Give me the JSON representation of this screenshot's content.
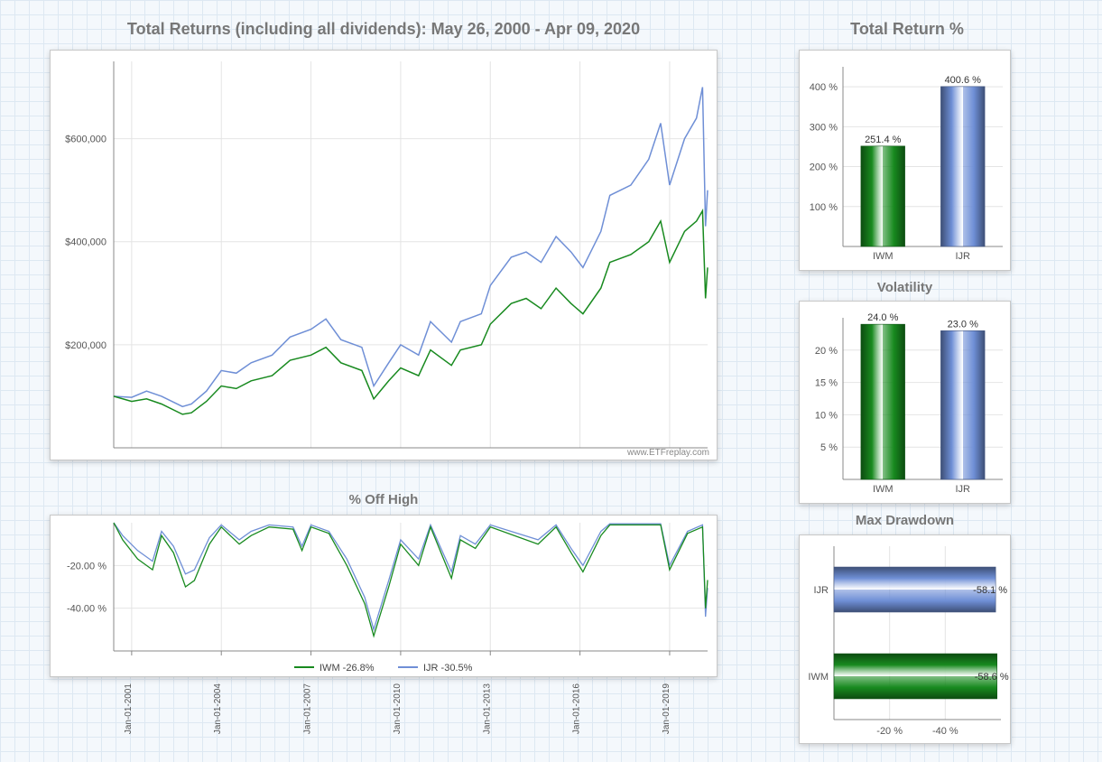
{
  "page_bg": "#f4f8fc",
  "grid_bg": "#dde8f2",
  "main_title": "Total Returns (including all dividends): May 26, 2000 - Apr 09, 2020",
  "main_title_fontsize": 18,
  "main_title_color": "#777777",
  "watermark": "www.ETFreplay.com",
  "series_colors": {
    "IWM": "#188a1f",
    "IJR": "#6f8fd6"
  },
  "returns_chart": {
    "type": "line",
    "panel_bg": "#ffffff",
    "grid_color": "#e4e4e4",
    "x_range_years": [
      2000.4,
      2020.27
    ],
    "y_range": [
      0,
      750000
    ],
    "y_ticks": [
      200000,
      400000,
      600000
    ],
    "y_tick_labels": [
      "$200,000",
      "$400,000",
      "$600,000"
    ],
    "x_tick_years": [
      2001,
      2004,
      2007,
      2010,
      2013,
      2016,
      2019
    ],
    "x_tick_labels": [
      "Jan-01-2001",
      "Jan-01-2004",
      "Jan-01-2007",
      "Jan-01-2010",
      "Jan-01-2013",
      "Jan-01-2016",
      "Jan-01-2019"
    ],
    "iwm_points": [
      [
        2000.4,
        100000
      ],
      [
        2001,
        90000
      ],
      [
        2001.5,
        95000
      ],
      [
        2002,
        85000
      ],
      [
        2002.7,
        65000
      ],
      [
        2003,
        68000
      ],
      [
        2003.5,
        90000
      ],
      [
        2004,
        120000
      ],
      [
        2004.5,
        115000
      ],
      [
        2005,
        130000
      ],
      [
        2005.7,
        140000
      ],
      [
        2006.3,
        170000
      ],
      [
        2007,
        180000
      ],
      [
        2007.5,
        195000
      ],
      [
        2008,
        165000
      ],
      [
        2008.7,
        150000
      ],
      [
        2009.1,
        95000
      ],
      [
        2009.6,
        130000
      ],
      [
        2010,
        155000
      ],
      [
        2010.6,
        140000
      ],
      [
        2011,
        190000
      ],
      [
        2011.7,
        160000
      ],
      [
        2012,
        190000
      ],
      [
        2012.7,
        200000
      ],
      [
        2013,
        240000
      ],
      [
        2013.7,
        280000
      ],
      [
        2014.2,
        290000
      ],
      [
        2014.7,
        270000
      ],
      [
        2015.2,
        310000
      ],
      [
        2015.7,
        280000
      ],
      [
        2016.1,
        260000
      ],
      [
        2016.7,
        310000
      ],
      [
        2017,
        360000
      ],
      [
        2017.7,
        375000
      ],
      [
        2018.3,
        400000
      ],
      [
        2018.7,
        440000
      ],
      [
        2019,
        360000
      ],
      [
        2019.5,
        420000
      ],
      [
        2019.9,
        440000
      ],
      [
        2020.1,
        460000
      ],
      [
        2020.2,
        290000
      ],
      [
        2020.27,
        350000
      ]
    ],
    "ijr_points": [
      [
        2000.4,
        100000
      ],
      [
        2001,
        98000
      ],
      [
        2001.5,
        110000
      ],
      [
        2002,
        100000
      ],
      [
        2002.7,
        80000
      ],
      [
        2003,
        85000
      ],
      [
        2003.5,
        110000
      ],
      [
        2004,
        150000
      ],
      [
        2004.5,
        145000
      ],
      [
        2005,
        165000
      ],
      [
        2005.7,
        180000
      ],
      [
        2006.3,
        215000
      ],
      [
        2007,
        230000
      ],
      [
        2007.5,
        250000
      ],
      [
        2008,
        210000
      ],
      [
        2008.7,
        195000
      ],
      [
        2009.1,
        120000
      ],
      [
        2009.6,
        165000
      ],
      [
        2010,
        200000
      ],
      [
        2010.6,
        180000
      ],
      [
        2011,
        245000
      ],
      [
        2011.7,
        205000
      ],
      [
        2012,
        245000
      ],
      [
        2012.7,
        260000
      ],
      [
        2013,
        315000
      ],
      [
        2013.7,
        370000
      ],
      [
        2014.2,
        380000
      ],
      [
        2014.7,
        360000
      ],
      [
        2015.2,
        410000
      ],
      [
        2015.7,
        380000
      ],
      [
        2016.1,
        350000
      ],
      [
        2016.7,
        420000
      ],
      [
        2017,
        490000
      ],
      [
        2017.7,
        510000
      ],
      [
        2018.3,
        560000
      ],
      [
        2018.7,
        630000
      ],
      [
        2019,
        510000
      ],
      [
        2019.5,
        600000
      ],
      [
        2019.9,
        640000
      ],
      [
        2020.1,
        700000
      ],
      [
        2020.2,
        430000
      ],
      [
        2020.27,
        500000
      ]
    ]
  },
  "off_high_chart": {
    "type": "line",
    "title": "% Off High",
    "y_range": [
      -60,
      0
    ],
    "y_ticks": [
      -20,
      -40
    ],
    "y_tick_labels": [
      "-20.00 %",
      "-40.00 %"
    ],
    "legend": {
      "iwm": "IWM -26.8%",
      "ijr": "IJR -30.5%"
    },
    "iwm_points": [
      [
        2000.4,
        0
      ],
      [
        2000.7,
        -8
      ],
      [
        2001.2,
        -17
      ],
      [
        2001.7,
        -22
      ],
      [
        2002,
        -6
      ],
      [
        2002.4,
        -14
      ],
      [
        2002.8,
        -30
      ],
      [
        2003.1,
        -27
      ],
      [
        2003.6,
        -10
      ],
      [
        2004,
        -2
      ],
      [
        2004.6,
        -10
      ],
      [
        2005,
        -6
      ],
      [
        2005.6,
        -2
      ],
      [
        2006.4,
        -3
      ],
      [
        2006.7,
        -13
      ],
      [
        2007,
        -2
      ],
      [
        2007.6,
        -5
      ],
      [
        2008.2,
        -20
      ],
      [
        2008.8,
        -38
      ],
      [
        2009.1,
        -53
      ],
      [
        2009.6,
        -30
      ],
      [
        2010,
        -10
      ],
      [
        2010.6,
        -20
      ],
      [
        2011,
        -2
      ],
      [
        2011.7,
        -26
      ],
      [
        2012,
        -8
      ],
      [
        2012.5,
        -12
      ],
      [
        2013,
        -2
      ],
      [
        2014.6,
        -10
      ],
      [
        2015.2,
        -2
      ],
      [
        2015.7,
        -14
      ],
      [
        2016.1,
        -23
      ],
      [
        2016.7,
        -6
      ],
      [
        2017,
        -1
      ],
      [
        2018.7,
        -1
      ],
      [
        2019,
        -22
      ],
      [
        2019.6,
        -5
      ],
      [
        2020.1,
        -2
      ],
      [
        2020.2,
        -40
      ],
      [
        2020.27,
        -26.8
      ]
    ],
    "ijr_points": [
      [
        2000.4,
        0
      ],
      [
        2000.7,
        -6
      ],
      [
        2001.2,
        -13
      ],
      [
        2001.7,
        -18
      ],
      [
        2002,
        -4
      ],
      [
        2002.4,
        -11
      ],
      [
        2002.8,
        -24
      ],
      [
        2003.1,
        -22
      ],
      [
        2003.6,
        -7
      ],
      [
        2004,
        -1
      ],
      [
        2004.6,
        -8
      ],
      [
        2005,
        -4
      ],
      [
        2005.6,
        -1
      ],
      [
        2006.4,
        -2
      ],
      [
        2006.7,
        -11
      ],
      [
        2007,
        -1
      ],
      [
        2007.6,
        -4
      ],
      [
        2008.2,
        -17
      ],
      [
        2008.8,
        -35
      ],
      [
        2009.1,
        -50
      ],
      [
        2009.6,
        -27
      ],
      [
        2010,
        -8
      ],
      [
        2010.6,
        -17
      ],
      [
        2011,
        -1
      ],
      [
        2011.7,
        -23
      ],
      [
        2012,
        -6
      ],
      [
        2012.5,
        -10
      ],
      [
        2013,
        -1
      ],
      [
        2014.6,
        -8
      ],
      [
        2015.2,
        -1
      ],
      [
        2015.7,
        -12
      ],
      [
        2016.1,
        -20
      ],
      [
        2016.7,
        -4
      ],
      [
        2017,
        -0.5
      ],
      [
        2018.7,
        -0.5
      ],
      [
        2019,
        -20
      ],
      [
        2019.6,
        -4
      ],
      [
        2020.1,
        -1
      ],
      [
        2020.2,
        -44
      ],
      [
        2020.27,
        -30.5
      ]
    ]
  },
  "total_return_bars": {
    "type": "bar",
    "title": "Total Return %",
    "y_range": [
      0,
      450
    ],
    "y_ticks": [
      100,
      200,
      300,
      400
    ],
    "y_tick_labels": [
      "100 %",
      "200 %",
      "300 %",
      "400 %"
    ],
    "bars": [
      {
        "label": "IWM",
        "value": 251.4,
        "display": "251.4 %",
        "color": "#188a1f"
      },
      {
        "label": "IJR",
        "value": 400.6,
        "display": "400.6 %",
        "color": "#6f8fd6"
      }
    ]
  },
  "volatility_bars": {
    "type": "bar",
    "title": "Volatility",
    "y_range": [
      0,
      25
    ],
    "y_ticks": [
      5,
      10,
      15,
      20
    ],
    "y_tick_labels": [
      "5 %",
      "10 %",
      "15 %",
      "20 %"
    ],
    "bars": [
      {
        "label": "IWM",
        "value": 24.0,
        "display": "24.0 %",
        "color": "#188a1f"
      },
      {
        "label": "IJR",
        "value": 23.0,
        "display": "23.0 %",
        "color": "#6f8fd6"
      }
    ]
  },
  "drawdown_bars": {
    "type": "hbar",
    "title": "Max Drawdown",
    "x_range": [
      0,
      -60
    ],
    "x_ticks": [
      -20,
      -40
    ],
    "x_tick_labels": [
      "-20 %",
      "-40 %"
    ],
    "bars": [
      {
        "label": "IJR",
        "value": -58.1,
        "display": "-58.1 %",
        "color": "#6f8fd6"
      },
      {
        "label": "IWM",
        "value": -58.6,
        "display": "-58.6 %",
        "color": "#188a1f"
      }
    ]
  }
}
